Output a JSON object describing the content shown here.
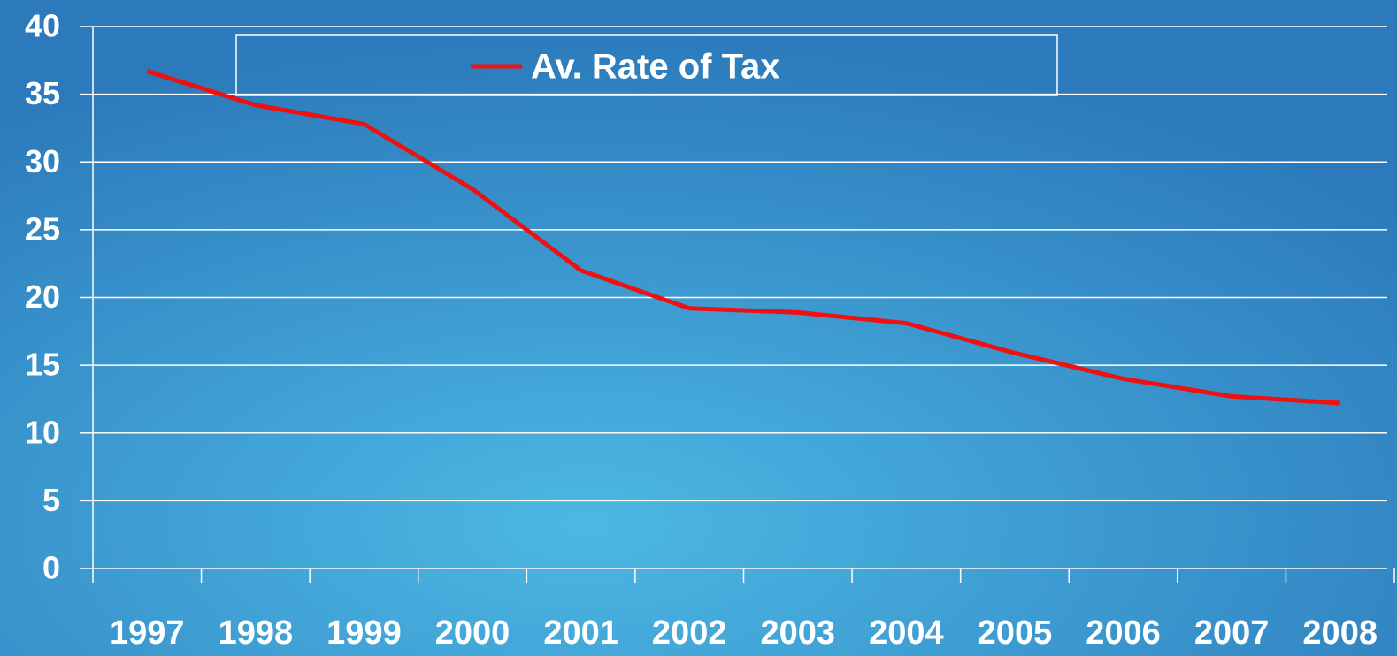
{
  "chart_data": {
    "type": "line",
    "categories": [
      "1997",
      "1998",
      "1999",
      "2000",
      "2001",
      "2002",
      "2003",
      "2004",
      "2005",
      "2006",
      "2007",
      "2008"
    ],
    "series": [
      {
        "name": "Av. Rate of Tax",
        "color": "#ee1111",
        "values": [
          36.7,
          34.2,
          32.8,
          28.0,
          22.0,
          19.2,
          18.9,
          18.1,
          15.9,
          14.0,
          12.7,
          12.2
        ]
      }
    ],
    "ylim": [
      0,
      40
    ],
    "yticks": [
      0,
      5,
      10,
      15,
      20,
      25,
      30,
      35,
      40
    ],
    "grid": true,
    "legend": "top"
  }
}
